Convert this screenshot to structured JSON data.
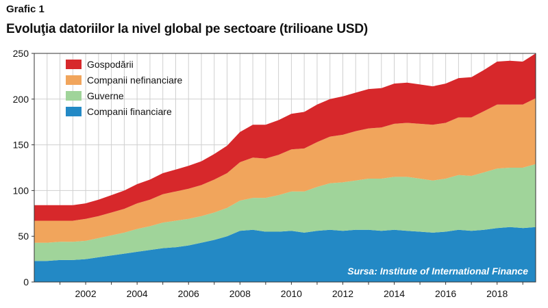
{
  "figure_label": "Grafic 1",
  "title": "Evoluţia datoriilor la nivel global pe sectoare (trilioane USD)",
  "source_note": "Sursa: Institute of International Finance",
  "colors": {
    "Gospodării": "#d7282b",
    "Companii nefinanciare": "#f1a55c",
    "Guverne": "#a0d49a",
    "Companii financiare": "#2389c5",
    "grid": "#cfcfcf",
    "source_text": "#ffffff"
  },
  "chart_data": {
    "type": "area",
    "stacked": true,
    "title": "Evoluţia datoriilor la nivel global pe sectoare (trilioane USD)",
    "xlabel": "",
    "ylabel": "",
    "xlim": [
      2000,
      2019.5
    ],
    "ylim": [
      0,
      250
    ],
    "yticks": [
      0,
      50,
      100,
      150,
      200,
      250
    ],
    "xticks": [
      2002,
      2004,
      2006,
      2008,
      2010,
      2012,
      2014,
      2016,
      2018
    ],
    "grid": true,
    "legend_position": "top-left",
    "legend": [
      "Gospodării",
      "Companii nefinanciare",
      "Guverne",
      "Companii financiare"
    ],
    "x": [
      2000,
      2000.5,
      2001,
      2001.5,
      2002,
      2002.5,
      2003,
      2003.5,
      2004,
      2004.5,
      2005,
      2005.5,
      2006,
      2006.5,
      2007,
      2007.5,
      2008,
      2008.5,
      2009,
      2009.5,
      2010,
      2010.5,
      2011,
      2011.5,
      2012,
      2012.5,
      2013,
      2013.5,
      2014,
      2014.5,
      2015,
      2015.5,
      2016,
      2016.5,
      2017,
      2017.5,
      2018,
      2018.5,
      2019,
      2019.5
    ],
    "series": [
      {
        "name": "Companii financiare",
        "values": [
          23,
          23,
          24,
          24,
          25,
          27,
          29,
          31,
          33,
          35,
          37,
          38,
          40,
          43,
          46,
          50,
          56,
          57,
          55,
          55,
          56,
          54,
          56,
          57,
          56,
          57,
          57,
          56,
          57,
          56,
          55,
          54,
          55,
          57,
          56,
          57,
          59,
          60,
          59,
          60
        ]
      },
      {
        "name": "Guverne",
        "values": [
          20,
          20,
          20,
          20,
          20,
          21,
          22,
          23,
          25,
          26,
          28,
          29,
          29,
          29,
          30,
          31,
          33,
          35,
          37,
          40,
          43,
          45,
          48,
          51,
          53,
          54,
          56,
          57,
          58,
          59,
          58,
          57,
          58,
          60,
          60,
          63,
          65,
          65,
          66,
          69
        ]
      },
      {
        "name": "Companii nefinanciare",
        "values": [
          24,
          24,
          23,
          23,
          24,
          24,
          25,
          26,
          28,
          29,
          31,
          32,
          33,
          34,
          36,
          38,
          42,
          44,
          43,
          44,
          46,
          47,
          49,
          51,
          52,
          54,
          55,
          56,
          58,
          59,
          60,
          61,
          61,
          63,
          64,
          67,
          70,
          69,
          69,
          72
        ]
      },
      {
        "name": "Gospodării",
        "values": [
          17,
          17,
          17,
          17,
          17,
          18,
          19,
          20,
          21,
          22,
          23,
          24,
          25,
          26,
          28,
          30,
          33,
          36,
          37,
          38,
          39,
          40,
          41,
          41,
          42,
          42,
          43,
          43,
          44,
          44,
          43,
          42,
          43,
          43,
          44,
          45,
          47,
          48,
          47,
          49
        ]
      }
    ]
  }
}
